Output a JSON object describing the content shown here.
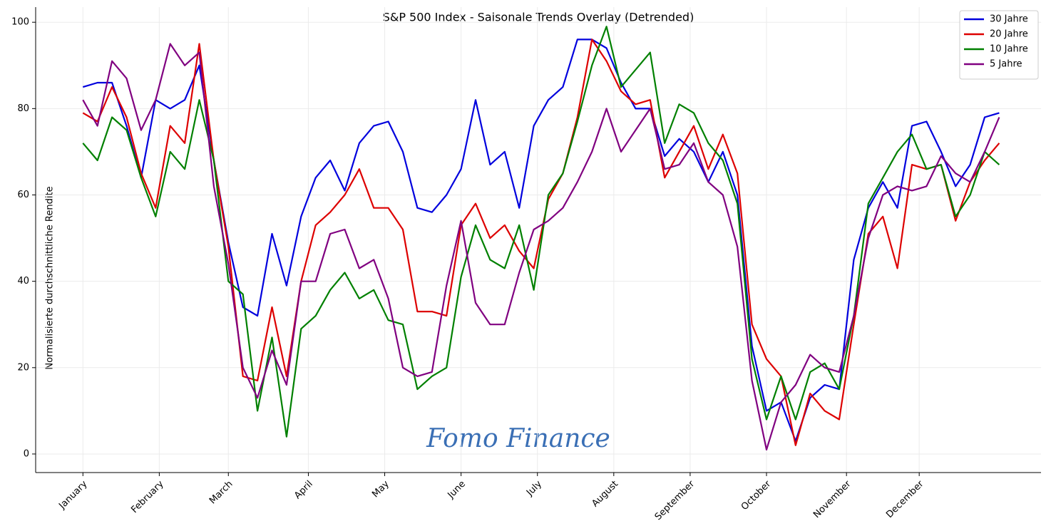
{
  "chart_data": {
    "type": "line",
    "title": "S&P 500 Index - Saisonale Trends Overlay (Detrended)",
    "ylabel": "Normalisierte durchschnittliche Rendite",
    "annotation": "Fomo Finance",
    "x": [
      0,
      4,
      8,
      12,
      16,
      20,
      24,
      28,
      32,
      36,
      40,
      44,
      48,
      52,
      56,
      60,
      64,
      68,
      72,
      76,
      80,
      84,
      88,
      92,
      96,
      100,
      104,
      108,
      112,
      116,
      120,
      124,
      128,
      132,
      136,
      140,
      144,
      148,
      152,
      156,
      160,
      164,
      168,
      172,
      176,
      180,
      184,
      188,
      192,
      196,
      200,
      204,
      208,
      212,
      216,
      220,
      224,
      228,
      232,
      236,
      240,
      244,
      248,
      252
    ],
    "series": [
      {
        "name": "30 Jahre",
        "color": "#0000dd",
        "values": [
          85,
          86,
          86,
          76,
          64,
          82,
          80,
          82,
          90,
          68,
          49,
          34,
          32,
          51,
          39,
          55,
          64,
          68,
          61,
          72,
          76,
          77,
          70,
          57,
          56,
          60,
          66,
          82,
          67,
          70,
          57,
          76,
          82,
          85,
          96,
          96,
          94,
          86,
          80,
          80,
          69,
          73,
          70,
          63,
          70,
          60,
          25,
          10,
          12,
          3,
          13,
          16,
          15,
          45,
          57,
          63,
          57,
          76,
          77,
          70,
          62,
          67,
          78,
          79
        ]
      },
      {
        "name": "20 Jahre",
        "color": "#dd0000",
        "values": [
          79,
          77,
          85,
          78,
          65,
          57,
          76,
          72,
          95,
          68,
          48,
          18,
          17,
          34,
          18,
          40,
          53,
          56,
          60,
          66,
          57,
          57,
          52,
          33,
          33,
          32,
          53,
          58,
          50,
          53,
          47,
          43,
          59,
          65,
          78,
          96,
          91,
          84,
          81,
          82,
          64,
          70,
          76,
          66,
          74,
          65,
          30,
          22,
          18,
          2,
          14,
          10,
          8,
          30,
          51,
          55,
          43,
          67,
          66,
          67,
          54,
          63,
          68,
          72
        ]
      },
      {
        "name": "10 Jahre",
        "color": "#008000",
        "values": [
          72,
          68,
          78,
          75,
          64,
          55,
          70,
          66,
          82,
          68,
          40,
          37,
          10,
          27,
          4,
          29,
          32,
          38,
          42,
          36,
          38,
          31,
          30,
          15,
          18,
          20,
          41,
          53,
          45,
          43,
          53,
          38,
          60,
          65,
          77,
          90,
          99,
          85,
          89,
          93,
          72,
          81,
          79,
          72,
          68,
          58,
          22,
          8,
          18,
          8,
          19,
          21,
          15,
          32,
          58,
          64,
          70,
          74,
          66,
          67,
          55,
          60,
          70,
          67
        ]
      },
      {
        "name": "5 Jahre",
        "color": "#800080",
        "values": [
          82,
          76,
          91,
          87,
          75,
          82,
          95,
          90,
          93,
          62,
          44,
          20,
          13,
          24,
          16,
          40,
          40,
          51,
          52,
          43,
          45,
          36,
          20,
          18,
          19,
          39,
          54,
          35,
          30,
          30,
          42,
          52,
          54,
          57,
          63,
          70,
          80,
          70,
          75,
          80,
          66,
          67,
          72,
          63,
          60,
          48,
          17,
          1,
          12,
          16,
          23,
          20,
          19,
          32,
          50,
          60,
          62,
          61,
          62,
          69,
          65,
          63,
          70,
          78
        ]
      }
    ],
    "xlim": [
      -13,
      263.5
    ],
    "xticks": [
      {
        "value": 0,
        "label": "January"
      },
      {
        "value": 21,
        "label": "February"
      },
      {
        "value": 40,
        "label": "March"
      },
      {
        "value": 62,
        "label": "April"
      },
      {
        "value": 83,
        "label": "May"
      },
      {
        "value": 104,
        "label": "June"
      },
      {
        "value": 125,
        "label": "July"
      },
      {
        "value": 146,
        "label": "August"
      },
      {
        "value": 167,
        "label": "September"
      },
      {
        "value": 188,
        "label": "October"
      },
      {
        "value": 210,
        "label": "November"
      },
      {
        "value": 230,
        "label": "December"
      }
    ],
    "ylim": [
      -4.3,
      103.5
    ],
    "yticks": [
      0,
      20,
      40,
      60,
      80,
      100
    ],
    "grid": true,
    "legend": "upper right"
  }
}
